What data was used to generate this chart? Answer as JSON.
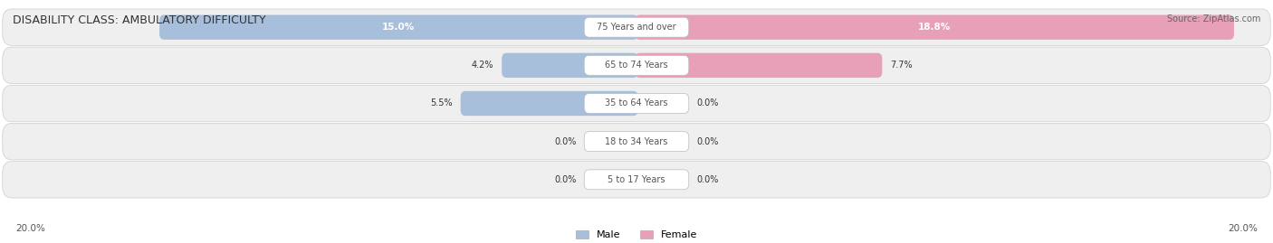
{
  "title": "DISABILITY CLASS: AMBULATORY DIFFICULTY",
  "source": "Source: ZipAtlas.com",
  "categories": [
    "5 to 17 Years",
    "18 to 34 Years",
    "35 to 64 Years",
    "65 to 74 Years",
    "75 Years and over"
  ],
  "male_values": [
    0.0,
    0.0,
    5.5,
    4.2,
    15.0
  ],
  "female_values": [
    0.0,
    0.0,
    0.0,
    7.7,
    18.8
  ],
  "max_val": 20.0,
  "male_color": "#a8bfdb",
  "female_color": "#e8a0b8",
  "row_bg_color": "#efefef",
  "label_color": "#333333",
  "center_label_color": "#555555",
  "bar_height": 0.55,
  "figsize": [
    14.06,
    2.69
  ],
  "dpi": 100,
  "axis_label_left": "20.0%",
  "axis_label_right": "20.0%"
}
